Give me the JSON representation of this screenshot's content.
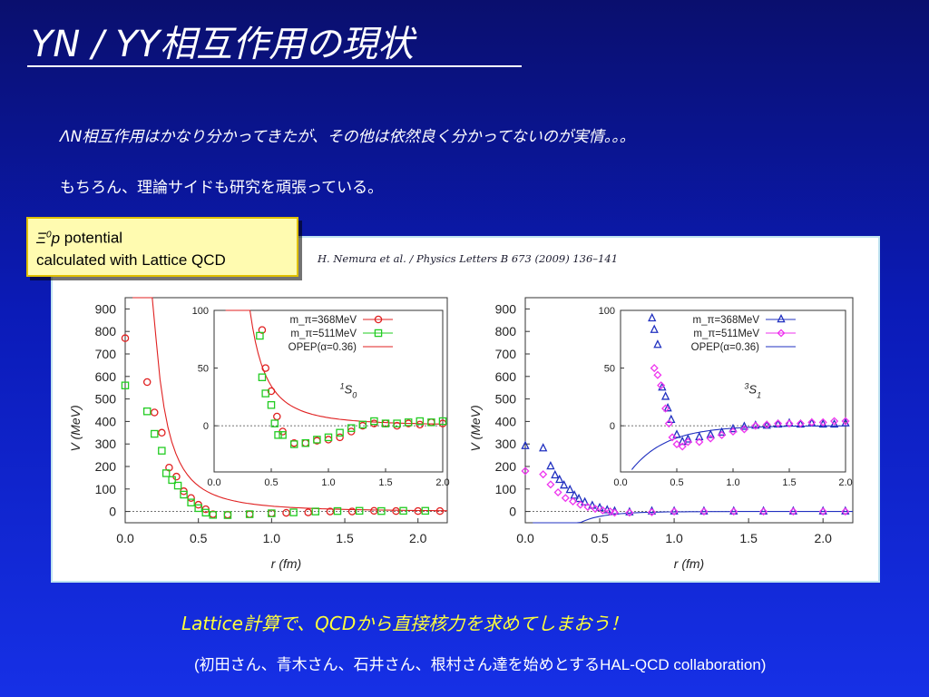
{
  "slide": {
    "title": "YN / YY相互作用の現状",
    "line1": "ΛN相互作用はかなり分かってきたが、その他は依然良く分かってないのが実情。。。",
    "line2": "もちろん、理論サイドも研究を頑張っている。",
    "callout": {
      "sym": "Ξ",
      "sup": "0",
      "p": "p",
      "rest": " potential",
      "line2": "calculated with Lattice QCD"
    },
    "citation": "H. Nemura et al. / Physics Letters B 673 (2009) 136–141",
    "footer1": "Lattice計算で、QCDから直接核力を求めてしまおう！",
    "footer2": "(初田さん、青木さん、石井さん、根村さん達を始めとするHAL-QCD collaboration)"
  },
  "colors": {
    "red": "#e02020",
    "green": "#22cc22",
    "blue": "#2030c0",
    "magenta": "#ee33ee"
  },
  "chart_data": [
    {
      "type": "scatter",
      "panel": "1S0",
      "xlabel": "r (fm)",
      "ylabel": "V (MeV)",
      "xlim": [
        0,
        2.2
      ],
      "ylim": [
        -50,
        950
      ],
      "xticks": [
        "0.0",
        "0.5",
        "1.0",
        "1.5",
        "2.0"
      ],
      "yticks": [
        "0",
        "100",
        "200",
        "300",
        "400",
        "500",
        "600",
        "700",
        "800",
        "900"
      ],
      "legend": [
        "m_π=368MeV",
        "m_π=511MeV",
        "OPEP(α=0.36)"
      ],
      "series": [
        {
          "name": "m_π=368MeV",
          "marker": "circle",
          "color": "red",
          "x": [
            0.0,
            0.15,
            0.2,
            0.25,
            0.3,
            0.35,
            0.4,
            0.45,
            0.5,
            0.55,
            0.6,
            0.7,
            0.85,
            1.0,
            1.1,
            1.25,
            1.4,
            1.55,
            1.7,
            1.85,
            2.0,
            2.15
          ],
          "y": [
            770,
            575,
            440,
            350,
            195,
            155,
            90,
            60,
            30,
            10,
            -12,
            -14,
            -12,
            -8,
            -6,
            -4,
            0,
            0,
            3,
            2,
            2,
            2
          ]
        },
        {
          "name": "m_π=511MeV",
          "marker": "square",
          "color": "green",
          "x": [
            0.0,
            0.15,
            0.2,
            0.25,
            0.28,
            0.32,
            0.36,
            0.4,
            0.45,
            0.5,
            0.55,
            0.6,
            0.7,
            0.85,
            1.0,
            1.15,
            1.3,
            1.45,
            1.6,
            1.75,
            1.9,
            2.05
          ],
          "y": [
            560,
            445,
            345,
            270,
            170,
            140,
            115,
            75,
            40,
            15,
            -5,
            -15,
            -16,
            -12,
            -8,
            -4,
            0,
            2,
            3,
            2,
            3,
            3
          ]
        }
      ],
      "inset": {
        "label": "1S0",
        "xlim": [
          0,
          2
        ],
        "ylim": [
          -40,
          100
        ],
        "xticks": [
          "0.0",
          "0.5",
          "1.0",
          "1.5",
          "2.0"
        ],
        "yticks": [
          "0",
          "50",
          "100"
        ],
        "series": [
          {
            "name": "m_π=368MeV",
            "x": [
              0.42,
              0.45,
              0.5,
              0.55,
              0.6,
              0.7,
              0.8,
              0.9,
              1.0,
              1.1,
              1.2,
              1.3,
              1.4,
              1.5,
              1.6,
              1.7,
              1.8,
              1.9,
              2.0
            ],
            "y": [
              83,
              50,
              30,
              8,
              -5,
              -15,
              -15,
              -13,
              -12,
              -10,
              -5,
              0,
              2,
              2,
              0,
              2,
              1,
              3,
              2
            ]
          },
          {
            "name": "m_π=511MeV",
            "x": [
              0.4,
              0.42,
              0.45,
              0.5,
              0.53,
              0.56,
              0.6,
              0.7,
              0.8,
              0.9,
              1.0,
              1.1,
              1.2,
              1.3,
              1.4,
              1.5,
              1.6,
              1.7,
              1.8,
              1.9,
              2.0
            ],
            "y": [
              78,
              42,
              28,
              18,
              2,
              -8,
              -8,
              -16,
              -15,
              -12,
              -10,
              -6,
              -2,
              1,
              4,
              2,
              2,
              3,
              4,
              3,
              4
            ]
          }
        ]
      }
    },
    {
      "type": "scatter",
      "panel": "3S1",
      "xlabel": "r (fm)",
      "ylabel": "V (MeV)",
      "xlim": [
        0,
        2.2
      ],
      "ylim": [
        -50,
        950
      ],
      "xticks": [
        "0.0",
        "0.5",
        "1.0",
        "1.5",
        "2.0"
      ],
      "yticks": [
        "0",
        "100",
        "200",
        "300",
        "400",
        "500",
        "600",
        "700",
        "800",
        "900"
      ],
      "legend": [
        "m_π=368MeV",
        "m_π=511MeV",
        "OPEP(α=0.36)"
      ],
      "series": [
        {
          "name": "m_π=368MeV",
          "marker": "triangle",
          "color": "blue",
          "x": [
            0.0,
            0.12,
            0.17,
            0.2,
            0.23,
            0.26,
            0.3,
            0.33,
            0.36,
            0.4,
            0.45,
            0.5,
            0.55,
            0.6,
            0.7,
            0.85,
            1.0,
            1.2,
            1.4,
            1.6,
            1.8,
            2.0,
            2.15
          ],
          "y": [
            290,
            280,
            200,
            160,
            140,
            115,
            95,
            70,
            55,
            40,
            25,
            15,
            5,
            0,
            -4,
            0,
            0,
            0,
            0,
            0,
            0,
            0,
            0
          ]
        },
        {
          "name": "m_π=511MeV",
          "marker": "diamond",
          "color": "magenta",
          "x": [
            0.0,
            0.12,
            0.17,
            0.22,
            0.27,
            0.32,
            0.37,
            0.42,
            0.47,
            0.52,
            0.57,
            0.6,
            0.7,
            0.85,
            1.0,
            1.2,
            1.4,
            1.6,
            1.8,
            2.0,
            2.15
          ],
          "y": [
            180,
            165,
            120,
            85,
            60,
            45,
            30,
            20,
            12,
            5,
            0,
            -5,
            -5,
            -3,
            0,
            0,
            0,
            0,
            0,
            0,
            0
          ]
        }
      ],
      "inset": {
        "label": "3S1",
        "xlim": [
          0,
          2
        ],
        "ylim": [
          -40,
          100
        ],
        "xticks": [
          "0.0",
          "0.5",
          "1.0",
          "1.5",
          "2.0"
        ],
        "yticks": [
          "0",
          "50",
          "100"
        ],
        "series": [
          {
            "name": "m_π=368MeV",
            "x": [
              0.28,
              0.3,
              0.33,
              0.37,
              0.4,
              0.42,
              0.45,
              0.5,
              0.55,
              0.6,
              0.7,
              0.8,
              0.9,
              1.0,
              1.1,
              1.2,
              1.3,
              1.4,
              1.5,
              1.6,
              1.7,
              1.8,
              1.9,
              2.0
            ],
            "y": [
              93,
              83,
              70,
              33,
              25,
              15,
              5,
              -8,
              -14,
              -12,
              -10,
              -8,
              -6,
              -3,
              -1,
              0,
              0,
              1,
              2,
              1,
              2,
              1,
              1,
              2
            ]
          },
          {
            "name": "m_π=511MeV",
            "x": [
              0.3,
              0.33,
              0.36,
              0.4,
              0.43,
              0.46,
              0.5,
              0.55,
              0.6,
              0.7,
              0.8,
              0.9,
              1.0,
              1.1,
              1.2,
              1.3,
              1.4,
              1.5,
              1.6,
              1.7,
              1.8,
              1.9,
              2.0
            ],
            "y": [
              50,
              44,
              35,
              15,
              2,
              -10,
              -16,
              -18,
              -14,
              -14,
              -11,
              -8,
              -5,
              -3,
              0,
              1,
              2,
              2,
              2,
              3,
              3,
              4,
              4
            ]
          }
        ]
      }
    }
  ]
}
